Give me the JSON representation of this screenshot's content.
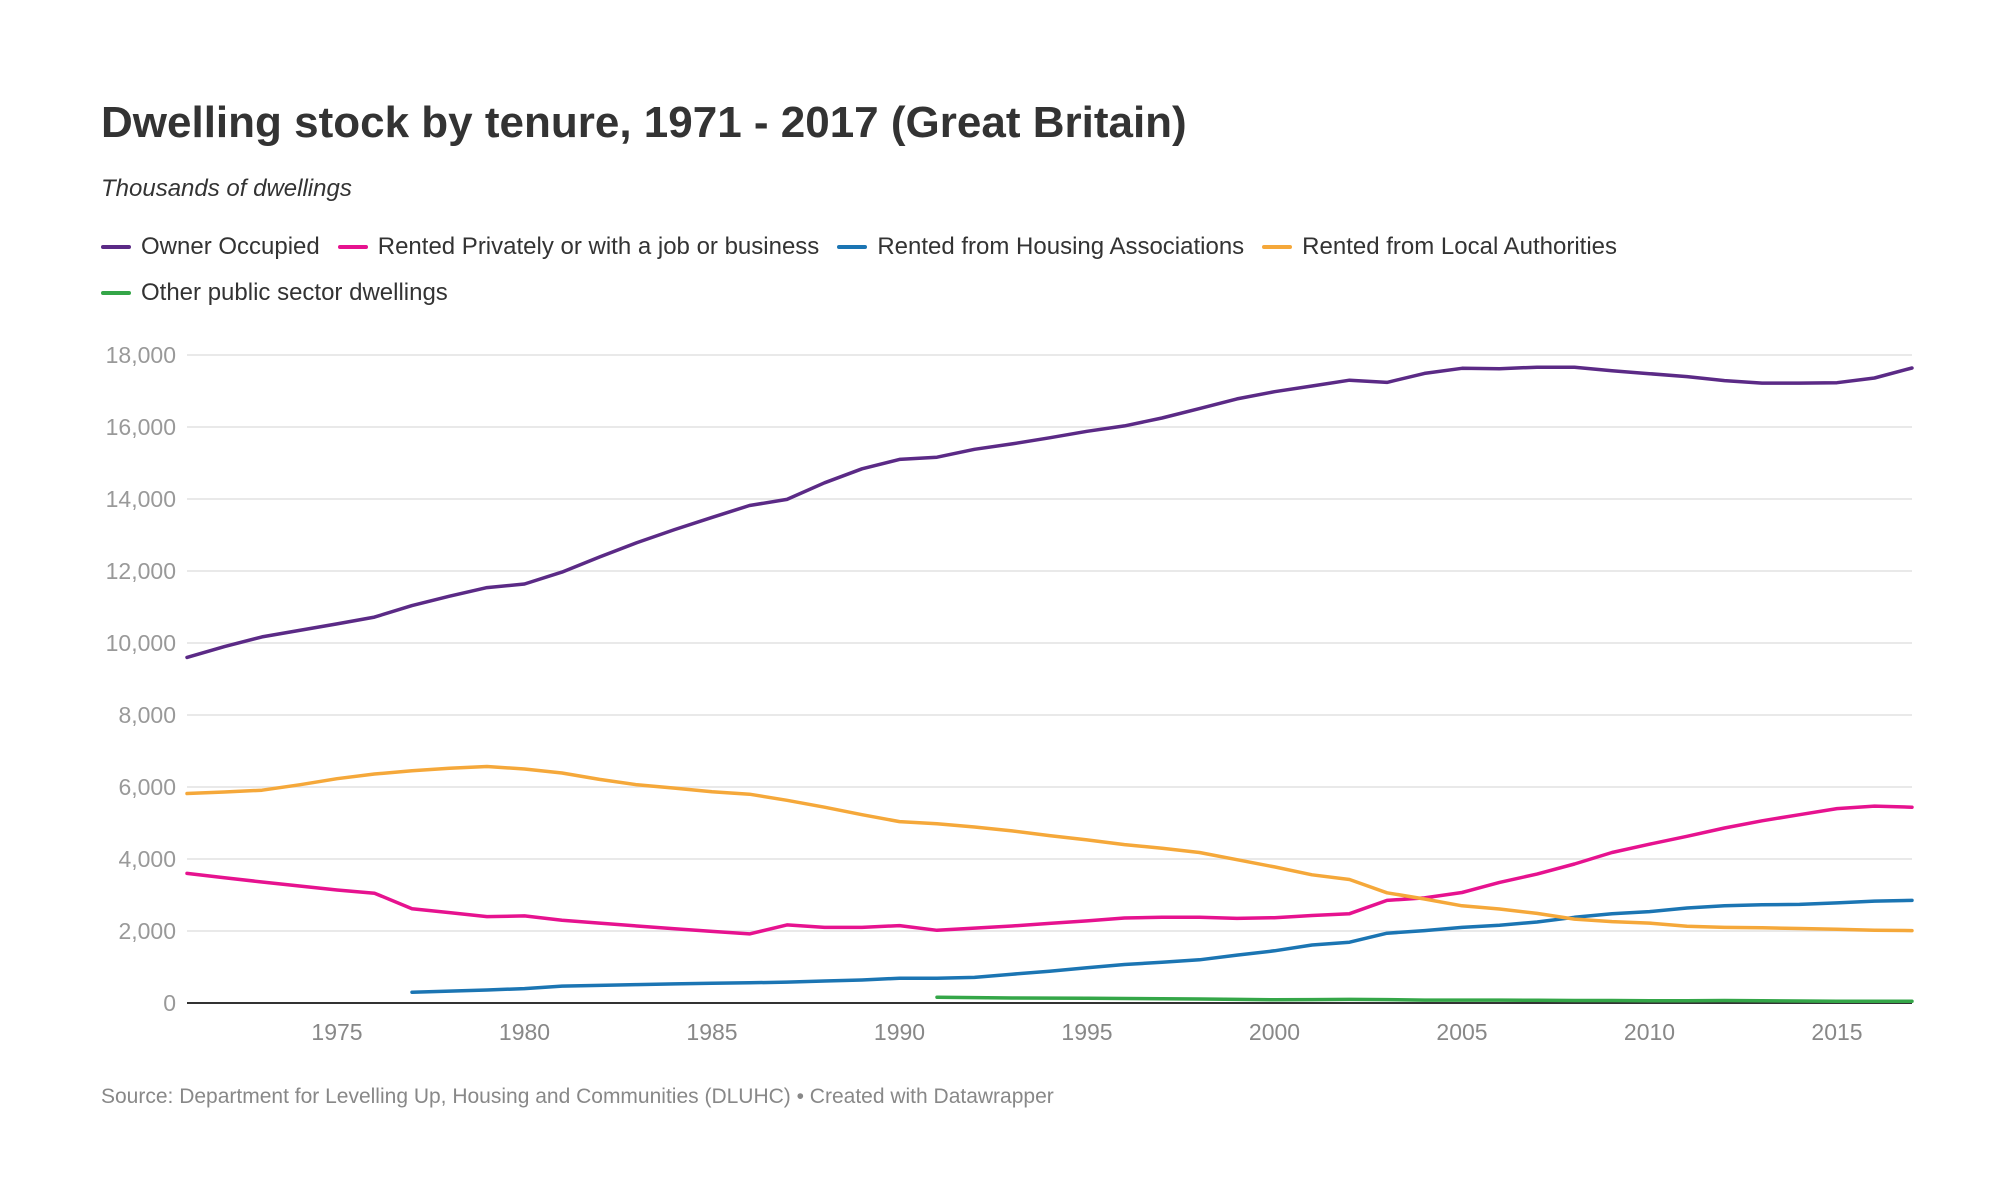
{
  "header": {
    "title": "Dwelling stock by tenure, 1971 - 2017 (Great Britain)",
    "subtitle": "Thousands of dwellings"
  },
  "footer": {
    "source": "Source: Department for Levelling Up, Housing and Communities (DLUHC) • Created with Datawrapper"
  },
  "chart_data": {
    "type": "line",
    "title": "Dwelling stock by tenure, 1971 - 2017 (Great Britain)",
    "subtitle": "Thousands of dwellings",
    "xlabel": "",
    "ylabel": "",
    "xlim": [
      1971,
      2017
    ],
    "ylim": [
      0,
      18000
    ],
    "x_ticks": [
      1975,
      1980,
      1985,
      1990,
      1995,
      2000,
      2005,
      2010,
      2015
    ],
    "y_ticks": [
      0,
      2000,
      4000,
      6000,
      8000,
      10000,
      12000,
      14000,
      16000,
      18000
    ],
    "y_tick_labels": [
      "0",
      "2,000",
      "4,000",
      "6,000",
      "8,000",
      "10,000",
      "12,000",
      "14,000",
      "16,000",
      "18,000"
    ],
    "grid": "horizontal",
    "legend_position": "top",
    "series": [
      {
        "name": "Owner Occupied",
        "color": "#5b2a86",
        "start": 1971,
        "values": [
          9600,
          9900,
          10170,
          10350,
          10530,
          10720,
          11040,
          11300,
          11540,
          11640,
          11970,
          12390,
          12790,
          13150,
          13490,
          13820,
          13990,
          14450,
          14840,
          15100,
          15160,
          15380,
          15530,
          15700,
          15880,
          16030,
          16250,
          16510,
          16780,
          16980,
          17140,
          17300,
          17240,
          17490,
          17630,
          17620,
          17660,
          17660,
          17560,
          17480,
          17400,
          17290,
          17220,
          17220,
          17230,
          17360,
          17640
        ]
      },
      {
        "name": "Rented Privately or with a job or business",
        "color": "#e6128f",
        "start": 1971,
        "values": [
          3600,
          3480,
          3360,
          3250,
          3140,
          3050,
          2620,
          2510,
          2400,
          2420,
          2300,
          2220,
          2140,
          2060,
          1990,
          1920,
          2170,
          2100,
          2100,
          2150,
          2020,
          2080,
          2140,
          2210,
          2280,
          2360,
          2380,
          2380,
          2350,
          2370,
          2430,
          2480,
          2850,
          2920,
          3070,
          3350,
          3580,
          3860,
          4180,
          4410,
          4630,
          4860,
          5060,
          5230,
          5400,
          5470,
          5440
        ]
      },
      {
        "name": "Rented from Housing Associations",
        "color": "#1b75b3",
        "start": 1977,
        "values": [
          300,
          330,
          360,
          400,
          470,
          490,
          510,
          530,
          550,
          560,
          580,
          610,
          640,
          690,
          690,
          710,
          800,
          880,
          980,
          1070,
          1130,
          1200,
          1330,
          1450,
          1610,
          1690,
          1940,
          2010,
          2100,
          2160,
          2250,
          2380,
          2480,
          2540,
          2640,
          2700,
          2730,
          2740,
          2780,
          2830,
          2850
        ]
      },
      {
        "name": "Rented from Local Authorities",
        "color": "#f5a83a",
        "start": 1971,
        "values": [
          5820,
          5860,
          5910,
          6060,
          6230,
          6360,
          6450,
          6520,
          6570,
          6500,
          6390,
          6210,
          6060,
          5970,
          5870,
          5800,
          5630,
          5440,
          5230,
          5040,
          4980,
          4890,
          4780,
          4650,
          4530,
          4400,
          4300,
          4180,
          3980,
          3780,
          3560,
          3430,
          3060,
          2890,
          2700,
          2610,
          2490,
          2330,
          2260,
          2220,
          2130,
          2100,
          2090,
          2070,
          2050,
          2020,
          2010
        ]
      },
      {
        "name": "Other public sector dwellings",
        "color": "#34a648",
        "start": 1991,
        "values": [
          160,
          150,
          140,
          135,
          130,
          125,
          120,
          110,
          100,
          90,
          95,
          100,
          95,
          80,
          80,
          80,
          75,
          70,
          70,
          60,
          60,
          70,
          65,
          55,
          50,
          50,
          50
        ]
      }
    ]
  }
}
